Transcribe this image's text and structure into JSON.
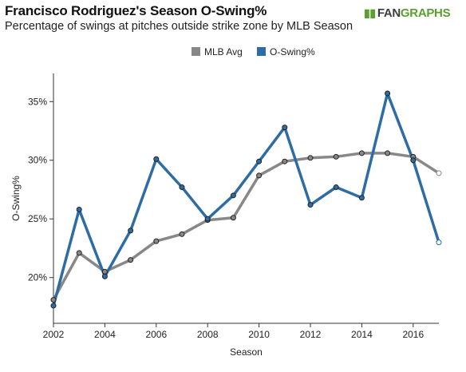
{
  "brand": {
    "logo_icon": "fangraphs-logo-icon",
    "fan": "FAN",
    "graphs": "GRAPHS"
  },
  "chart_data": {
    "type": "line",
    "title": "Francisco Rodriguez's Season O-Swing%",
    "subtitle": "Percentage of swings at pitches outside strike zone by MLB Season",
    "xlabel": "Season",
    "ylabel": "O-Swing%",
    "xlim": [
      2002,
      2017
    ],
    "ylim": [
      16.1,
      37.4
    ],
    "x_ticks": [
      2002,
      2004,
      2006,
      2008,
      2010,
      2012,
      2014,
      2016
    ],
    "y_ticks": [
      20,
      25,
      30,
      35
    ],
    "y_tick_labels": [
      "20%",
      "25%",
      "30%",
      "35%"
    ],
    "grid": false,
    "legend_position": "top-center",
    "x": [
      2002,
      2003,
      2004,
      2005,
      2006,
      2007,
      2008,
      2009,
      2010,
      2011,
      2012,
      2013,
      2014,
      2015,
      2016,
      2017
    ],
    "series": [
      {
        "name": "MLB Avg",
        "color": "#888888",
        "values": [
          18.1,
          22.1,
          20.5,
          21.5,
          23.1,
          23.7,
          24.9,
          25.1,
          28.7,
          29.9,
          30.2,
          30.3,
          30.6,
          30.6,
          30.3,
          28.9
        ]
      },
      {
        "name": "O-Swing%",
        "color": "#2e6da4",
        "values": [
          17.6,
          25.8,
          20.1,
          24.0,
          30.1,
          27.7,
          25.0,
          27.0,
          29.9,
          32.8,
          26.2,
          27.7,
          26.8,
          35.7,
          30.0,
          23.0
        ]
      }
    ]
  }
}
